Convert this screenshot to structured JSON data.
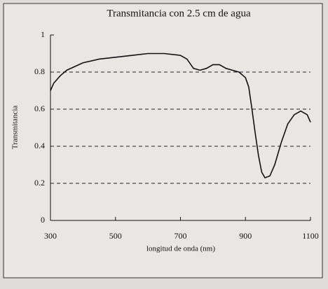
{
  "chart_data": {
    "type": "line",
    "title": "Transmitancia con 2.5 cm de agua",
    "x_label": "longitud de onda (nm)",
    "y_label": "Transmitancia",
    "x": [
      300,
      310,
      330,
      350,
      400,
      450,
      500,
      550,
      600,
      650,
      700,
      720,
      740,
      760,
      780,
      800,
      820,
      840,
      860,
      880,
      900,
      910,
      920,
      930,
      940,
      950,
      960,
      975,
      990,
      1010,
      1030,
      1050,
      1070,
      1090,
      1100
    ],
    "series": [
      {
        "name": "Transmitancia",
        "color": "#111111",
        "values": [
          0.7,
          0.74,
          0.78,
          0.81,
          0.85,
          0.87,
          0.88,
          0.89,
          0.9,
          0.9,
          0.89,
          0.87,
          0.82,
          0.81,
          0.82,
          0.84,
          0.84,
          0.82,
          0.81,
          0.8,
          0.77,
          0.72,
          0.6,
          0.47,
          0.35,
          0.26,
          0.23,
          0.24,
          0.3,
          0.42,
          0.52,
          0.57,
          0.59,
          0.57,
          0.53
        ]
      }
    ],
    "xlim": [
      300,
      1100
    ],
    "xticks": [
      300,
      500,
      700,
      900,
      1100
    ],
    "ylim": [
      0,
      1
    ],
    "yticks": [
      0,
      0.2,
      0.4,
      0.6,
      0.8,
      1
    ],
    "grid": true
  }
}
